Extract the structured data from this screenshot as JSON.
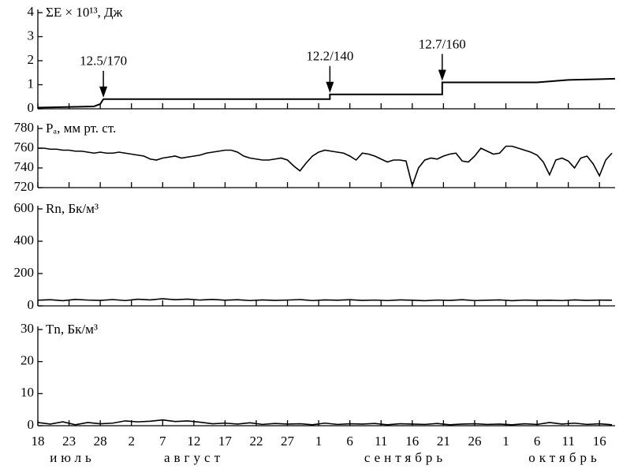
{
  "chart_data": [
    {
      "type": "line",
      "title": "ΣE × 10¹³, Дж",
      "color": "#000000",
      "x": [
        0,
        9,
        10,
        10.5,
        46.8,
        46.8,
        64.8,
        64.8,
        80,
        85,
        92.5
      ],
      "values": [
        0.05,
        0.1,
        0.2,
        0.4,
        0.4,
        0.6,
        0.6,
        1.1,
        1.1,
        1.2,
        1.25
      ],
      "xlim": [
        0,
        92.5
      ],
      "ylim": [
        0,
        4
      ],
      "yticks": [
        0,
        1,
        2,
        3,
        4
      ],
      "annotations": [
        {
          "text": "12.5/170",
          "x": 10.5
        },
        {
          "text": "12.2/140",
          "x": 46.8
        },
        {
          "text": "12.7/160",
          "x": 64.8
        }
      ]
    },
    {
      "type": "line",
      "title": "Pₐ, мм рт. ст.",
      "color": "#000000",
      "x": [
        0,
        1,
        2,
        3,
        4,
        5,
        6,
        7,
        8,
        9,
        10,
        11,
        12,
        13,
        14,
        15,
        16,
        17,
        18,
        19,
        20,
        21,
        22,
        23,
        24,
        25,
        26,
        27,
        28,
        29,
        30,
        31,
        32,
        33,
        34,
        35,
        36,
        37,
        38,
        39,
        40,
        41,
        42,
        43,
        44,
        45,
        46,
        47,
        48,
        49,
        50,
        51,
        52,
        53,
        54,
        55,
        56,
        57,
        58,
        59,
        60,
        61,
        62,
        63,
        64,
        65,
        66,
        67,
        68,
        69,
        70,
        71,
        72,
        73,
        74,
        75,
        76,
        77,
        78,
        79,
        80,
        81,
        82,
        83,
        84,
        85,
        86,
        87,
        88,
        89,
        90,
        91,
        92
      ],
      "values": [
        760,
        760,
        759,
        759,
        758,
        758,
        757,
        757,
        756,
        755,
        756,
        755,
        755,
        756,
        755,
        754,
        753,
        752,
        749,
        748,
        750,
        751,
        752,
        750,
        751,
        752,
        753,
        755,
        756,
        757,
        758,
        758,
        756,
        752,
        750,
        749,
        748,
        748,
        749,
        750,
        748,
        742,
        737,
        745,
        752,
        756,
        758,
        757,
        756,
        755,
        752,
        748,
        755,
        754,
        752,
        749,
        746,
        748,
        748,
        747,
        722,
        740,
        748,
        750,
        749,
        752,
        754,
        755,
        747,
        746,
        752,
        760,
        757,
        754,
        755,
        762,
        762,
        760,
        758,
        756,
        753,
        746,
        733,
        748,
        750,
        747,
        740,
        750,
        752,
        744,
        732,
        748,
        755
      ],
      "xlim": [
        0,
        92.5
      ],
      "ylim": [
        720,
        780
      ],
      "yticks": [
        720,
        740,
        760,
        780
      ]
    },
    {
      "type": "line",
      "title": "Rn, Бк/м³",
      "color": "#000000",
      "x": [
        0,
        2,
        4,
        6,
        8,
        10,
        12,
        14,
        16,
        18,
        20,
        22,
        24,
        26,
        28,
        30,
        32,
        34,
        36,
        38,
        40,
        42,
        44,
        46,
        48,
        50,
        52,
        54,
        56,
        58,
        60,
        62,
        64,
        66,
        68,
        70,
        72,
        74,
        76,
        78,
        80,
        82,
        84,
        86,
        88,
        90,
        92
      ],
      "values": [
        35,
        38,
        32,
        40,
        36,
        34,
        39,
        33,
        41,
        37,
        44,
        38,
        42,
        36,
        40,
        35,
        38,
        33,
        37,
        34,
        36,
        39,
        33,
        37,
        35,
        38,
        34,
        36,
        33,
        37,
        35,
        32,
        36,
        34,
        38,
        33,
        35,
        37,
        32,
        36,
        34,
        35,
        33,
        37,
        34,
        36,
        35
      ],
      "xlim": [
        0,
        92.5
      ],
      "ylim": [
        0,
        600
      ],
      "yticks": [
        0,
        200,
        400,
        600
      ]
    },
    {
      "type": "line",
      "title": "Tn, Бк/м³",
      "color": "#000000",
      "x": [
        0,
        2,
        4,
        6,
        8,
        10,
        12,
        14,
        16,
        18,
        20,
        22,
        24,
        26,
        28,
        30,
        32,
        34,
        36,
        38,
        40,
        42,
        44,
        46,
        48,
        50,
        52,
        54,
        56,
        58,
        60,
        62,
        64,
        66,
        68,
        70,
        72,
        74,
        76,
        78,
        80,
        82,
        84,
        86,
        88,
        90,
        92
      ],
      "values": [
        1,
        0.5,
        1.2,
        0.3,
        1,
        0.6,
        0.8,
        1.5,
        1.2,
        1.4,
        1.8,
        1.3,
        1.5,
        1.1,
        0.6,
        0.8,
        0.5,
        0.9,
        0.4,
        0.7,
        0.5,
        0.6,
        0.3,
        0.8,
        0.4,
        0.6,
        0.5,
        0.7,
        0.3,
        0.6,
        0.5,
        0.4,
        0.7,
        0.3,
        0.5,
        0.6,
        0.4,
        0.5,
        0.3,
        0.6,
        0.4,
        1,
        0.5,
        0.8,
        0.4,
        0.6,
        0.3
      ],
      "xlim": [
        0,
        92.5
      ],
      "ylim": [
        0,
        30
      ],
      "yticks": [
        0,
        10,
        20,
        30
      ],
      "xticks": [
        {
          "value": 0,
          "label": "18"
        },
        {
          "value": 5,
          "label": "23"
        },
        {
          "value": 10,
          "label": "28"
        },
        {
          "value": 15,
          "label": "2"
        },
        {
          "value": 20,
          "label": "7"
        },
        {
          "value": 25,
          "label": "12"
        },
        {
          "value": 30,
          "label": "17"
        },
        {
          "value": 35,
          "label": "22"
        },
        {
          "value": 40,
          "label": "27"
        },
        {
          "value": 45,
          "label": "1"
        },
        {
          "value": 50,
          "label": "6"
        },
        {
          "value": 55,
          "label": "11"
        },
        {
          "value": 60,
          "label": "16"
        },
        {
          "value": 65,
          "label": "21"
        },
        {
          "value": 70,
          "label": "26"
        },
        {
          "value": 75,
          "label": "1"
        },
        {
          "value": 80,
          "label": "6"
        },
        {
          "value": 85,
          "label": "11"
        },
        {
          "value": 90,
          "label": "16"
        }
      ],
      "month_labels": [
        "июль",
        "август",
        "сентябрь",
        "октябрь"
      ]
    }
  ]
}
